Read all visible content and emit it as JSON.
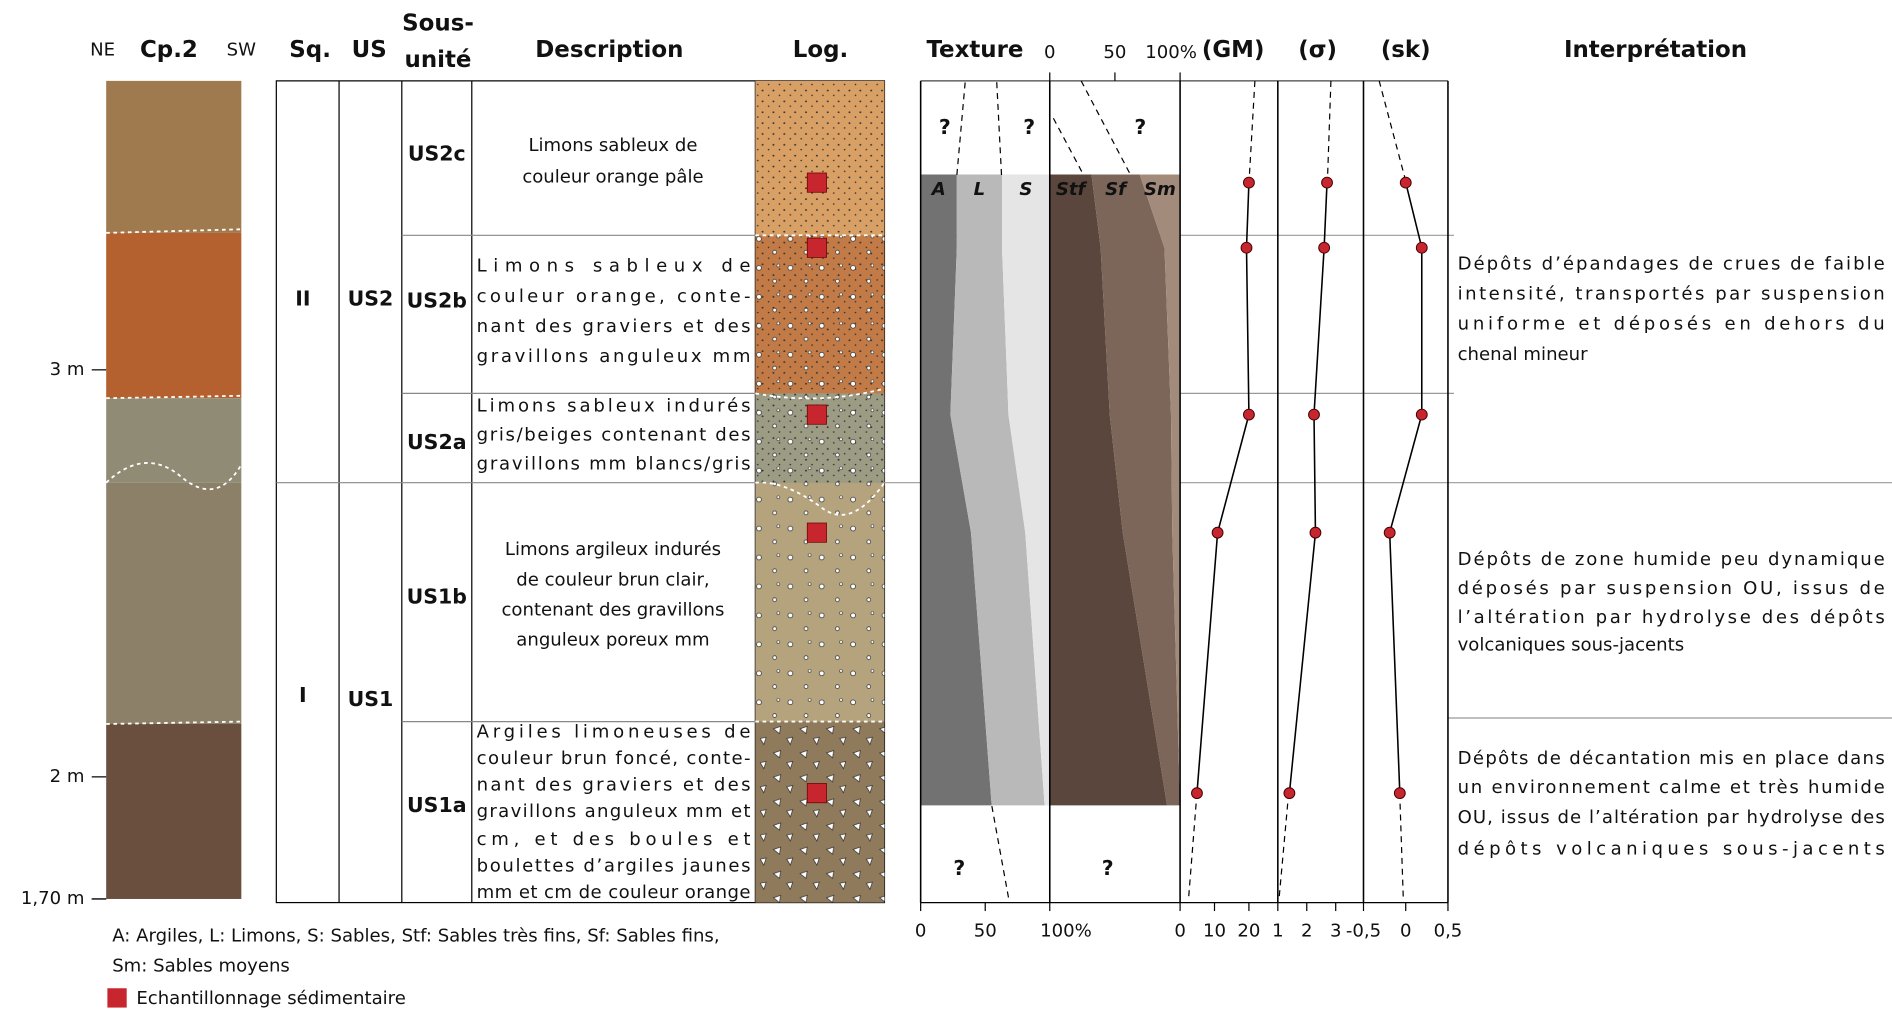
{
  "photo": {
    "left_label": "NE",
    "title": "Cp.2",
    "right_label": "SW"
  },
  "depth_axis": {
    "ylim": [
      1.7,
      3.71
    ],
    "ticks": [
      {
        "value": 3,
        "label": "3 m"
      },
      {
        "value": 2,
        "label": "2 m"
      },
      {
        "value": 1.7,
        "label": "1,70 m"
      }
    ]
  },
  "table": {
    "headers": {
      "sq": "Sq.",
      "us": "US",
      "subunit": [
        "Sous-",
        "unité"
      ],
      "description": "Description",
      "log": "Log."
    },
    "sequences": [
      "II",
      "I"
    ],
    "units": [
      "US2",
      "US1"
    ],
    "subunits": [
      {
        "label": "US2c",
        "description": [
          "Limons sableux de",
          "couleur orange pâle"
        ]
      },
      {
        "label": "US2b",
        "description": [
          "Limons sableux de",
          "couleur orange, conte-",
          "nant des graviers et des",
          "gravillons anguleux mm"
        ]
      },
      {
        "label": "US2a",
        "description": [
          "Limons sableux indurés",
          "gris/beiges contenant des",
          "gravillons mm blancs/gris"
        ]
      },
      {
        "label": "US1b",
        "description": [
          "Limons argileux indurés",
          "de couleur brun clair,",
          "contenant des gravillons",
          "anguleux poreux mm"
        ]
      },
      {
        "label": "US1a",
        "description": [
          "Argiles limoneuses de",
          "couleur brun foncé, conte-",
          "nant des graviers et des",
          "gravillons anguleux mm et",
          "cm, et des boules et",
          "boulettes d’argiles jaunes",
          "mm et cm de couleur orange"
        ]
      }
    ]
  },
  "sample_depths": [
    3.46,
    3.3,
    2.89,
    2.6,
    1.96
  ],
  "sample_color": "#c8262e",
  "texture": {
    "title": "Texture",
    "xlim": [
      0,
      100
    ],
    "ticks": [
      0,
      50,
      {
        "value": 100,
        "label": "100%"
      }
    ],
    "unknown_label": "?",
    "depths": [
      3.48,
      3.3,
      2.89,
      2.6,
      1.93
    ],
    "grain": [
      {
        "name": "A",
        "color": "#727272",
        "values": [
          28,
          28,
          23,
          39,
          55
        ]
      },
      {
        "name": "L",
        "color": "#b9b9b9",
        "values": [
          35,
          35,
          45,
          42,
          41
        ]
      },
      {
        "name": "S",
        "color": "#e5e5e5",
        "values": [
          37,
          37,
          32,
          19,
          4
        ]
      }
    ],
    "sand": [
      {
        "name": "Stf",
        "color": "#5a463c",
        "values": [
          32,
          39,
          46,
          56,
          90
        ]
      },
      {
        "name": "Sf",
        "color": "#7b6659",
        "values": [
          37,
          49,
          47,
          38,
          10
        ]
      },
      {
        "name": "Sm",
        "color": "#a38b7c",
        "values": [
          31,
          12,
          7,
          6,
          0
        ]
      }
    ]
  },
  "plots": [
    {
      "title": "(GM)",
      "xlim": [
        0,
        28.4
      ],
      "xticks": [
        0,
        10,
        20
      ],
      "values": [
        20,
        19.3,
        20,
        10.9,
        4.9
      ]
    },
    {
      "title": "(σ)",
      "xlim": [
        1,
        3.96
      ],
      "xticks": [
        1,
        2,
        3
      ],
      "values": [
        2.7,
        2.6,
        2.25,
        2.3,
        1.4
      ]
    },
    {
      "title": "(sk)",
      "xlim": [
        -0.5,
        0.5
      ],
      "xticks": [
        {
          "value": -0.5,
          "label": "-0,5"
        },
        0,
        {
          "value": 0.5,
          "label": "0,5"
        }
      ],
      "values": [
        0,
        0.19,
        0.19,
        -0.19,
        -0.07
      ]
    }
  ],
  "interpretation": {
    "title": "Interprétation",
    "items": [
      [
        "Dépôts d’épandages de crues de faible",
        "intensité, transportés par suspension",
        "uniforme  et déposés en dehors du",
        "chenal mineur"
      ],
      [
        "Dépôts de zone humide peu dynamique",
        "déposés par suspension OU, issus de",
        "l’altération par hydrolyse des dépôts",
        "volcaniques sous-jacents"
      ],
      [
        "Dépôts de décantation mis en place dans",
        "un environnement calme et très humide",
        "OU, issus de l’altération par hydrolyse des",
        "dépôts volcaniques sous-jacents"
      ]
    ]
  },
  "legend": {
    "abbreviations": [
      "A: Argiles, L: Limons, S: Sables, Stf: Sables très fins, Sf: Sables fins,",
      "Sm: Sables moyens"
    ],
    "sample": "Echantillonnage sédimentaire"
  }
}
